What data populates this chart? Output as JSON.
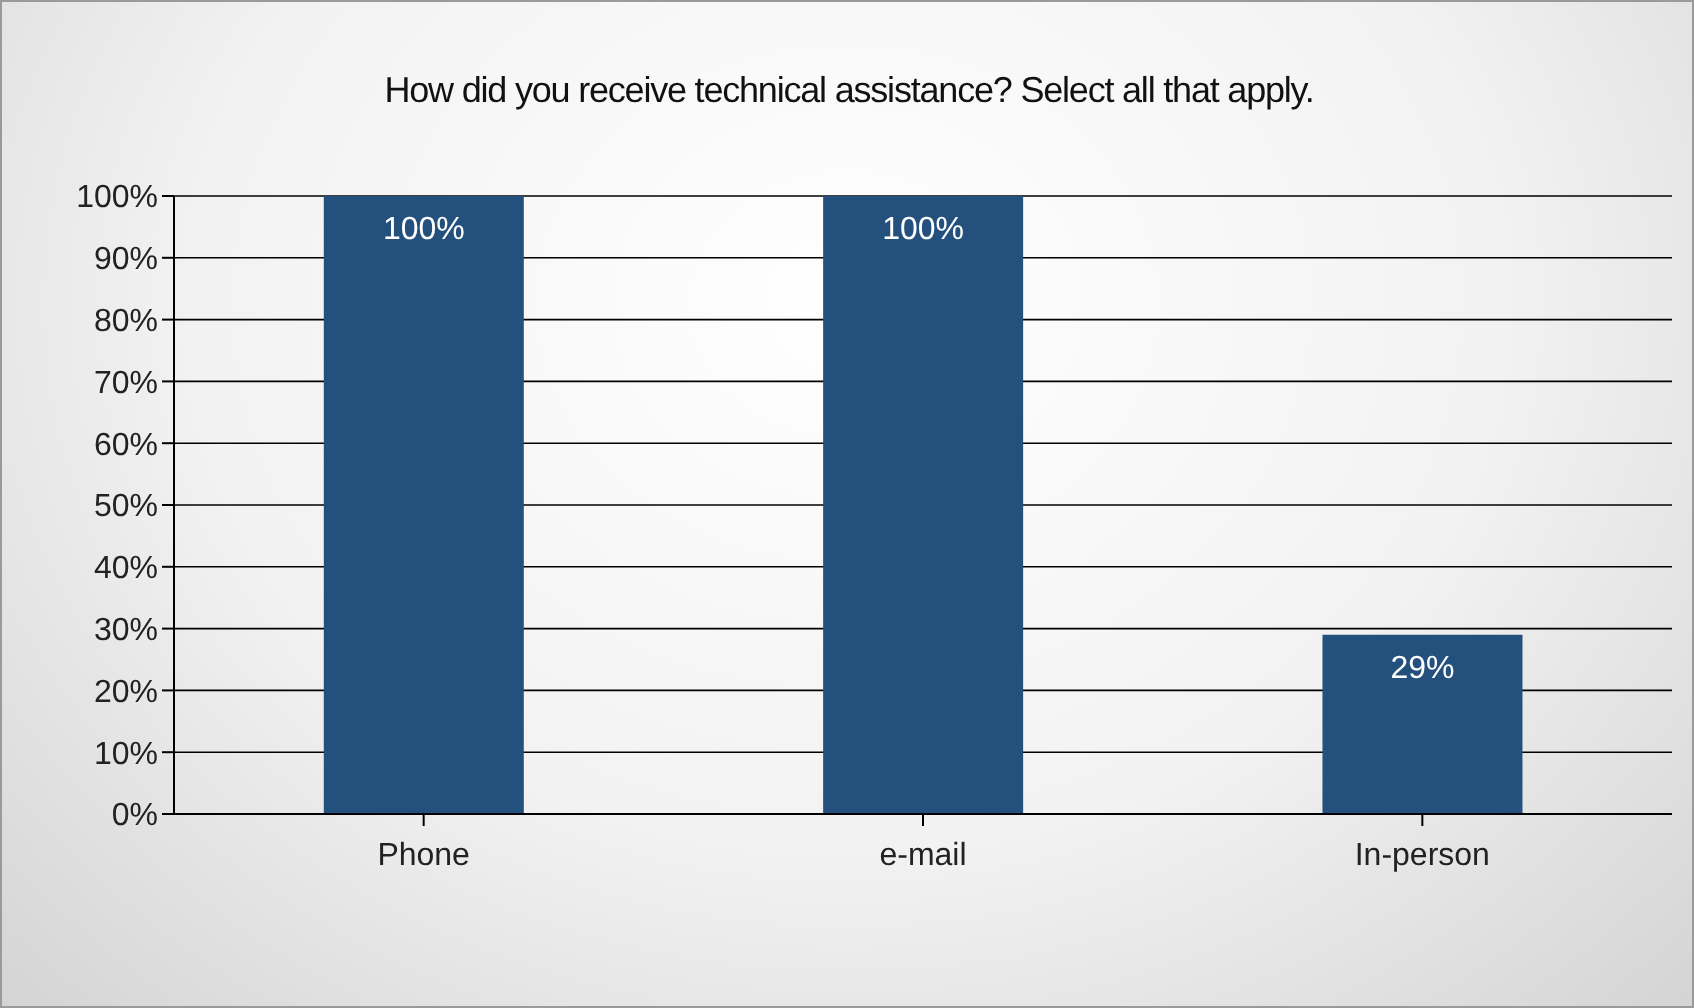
{
  "chart_data": {
    "type": "bar",
    "title": "How did you receive technical assistance? Select all that apply.",
    "categories": [
      "Phone",
      "e-mail",
      "In-person"
    ],
    "values": [
      100,
      100,
      29
    ],
    "color": "#23507c",
    "value_labels": [
      "100%",
      "100%",
      "29%"
    ],
    "ylim": [
      0,
      100
    ],
    "yticks": [
      {
        "value": 0,
        "label": "0%"
      },
      {
        "value": 10,
        "label": "10%"
      },
      {
        "value": 20,
        "label": "20%"
      },
      {
        "value": 30,
        "label": "30%"
      },
      {
        "value": 40,
        "label": "40%"
      },
      {
        "value": 50,
        "label": "50%"
      },
      {
        "value": 60,
        "label": "60%"
      },
      {
        "value": 70,
        "label": "70%"
      },
      {
        "value": 80,
        "label": "80%"
      },
      {
        "value": 90,
        "label": "90%"
      },
      {
        "value": 100,
        "label": "100%"
      }
    ],
    "grid": "y",
    "legend": false
  }
}
